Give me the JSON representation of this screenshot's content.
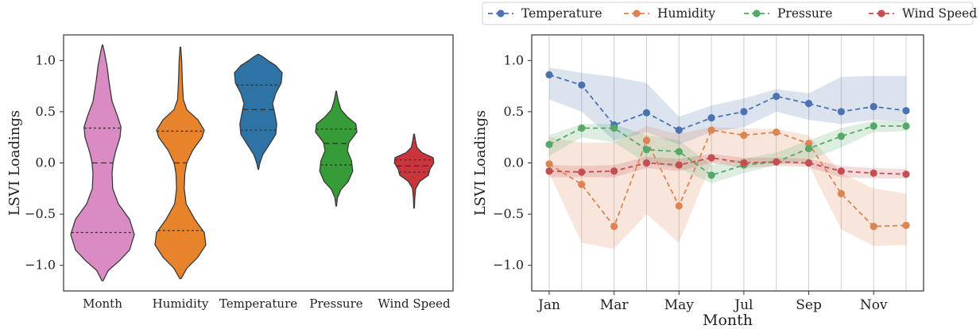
{
  "chart_data": [
    {
      "type": "violin",
      "ylabel": "LSVI Loadings",
      "xlabel": "",
      "ylim": [
        -1.25,
        1.25
      ],
      "yticks": [
        1.0,
        0.5,
        0.0,
        -0.5,
        -1.0
      ],
      "ytick_labels": [
        "1.0",
        "0.5",
        "0.0",
        "−0.5",
        "−1.0"
      ],
      "grid": false,
      "categories": [
        "Month",
        "Humidity",
        "Temperature",
        "Pressure",
        "Wind Speed"
      ],
      "violins": [
        {
          "name": "Month",
          "color": "#da8bc3",
          "min": -1.15,
          "max": 1.15,
          "q1": -0.68,
          "median": 0.0,
          "q3": 0.34,
          "density": [
            [
              -1.15,
              0.02
            ],
            [
              -1.05,
              0.18
            ],
            [
              -0.95,
              0.55
            ],
            [
              -0.85,
              0.85
            ],
            [
              -0.7,
              1.0
            ],
            [
              -0.55,
              0.85
            ],
            [
              -0.4,
              0.5
            ],
            [
              -0.25,
              0.32
            ],
            [
              -0.1,
              0.3
            ],
            [
              0.0,
              0.33
            ],
            [
              0.1,
              0.4
            ],
            [
              0.25,
              0.55
            ],
            [
              0.35,
              0.58
            ],
            [
              0.45,
              0.48
            ],
            [
              0.6,
              0.3
            ],
            [
              0.8,
              0.2
            ],
            [
              0.95,
              0.14
            ],
            [
              1.08,
              0.06
            ],
            [
              1.15,
              0.01
            ]
          ]
        },
        {
          "name": "Humidity",
          "color": "#e6832b",
          "min": -1.13,
          "max": 1.13,
          "q1": -0.66,
          "median": 0.0,
          "q3": 0.31,
          "density": [
            [
              -1.13,
              0.02
            ],
            [
              -1.03,
              0.2
            ],
            [
              -0.92,
              0.55
            ],
            [
              -0.8,
              0.8
            ],
            [
              -0.68,
              0.75
            ],
            [
              -0.55,
              0.45
            ],
            [
              -0.4,
              0.18
            ],
            [
              -0.25,
              0.12
            ],
            [
              -0.1,
              0.14
            ],
            [
              0.0,
              0.2
            ],
            [
              0.12,
              0.38
            ],
            [
              0.25,
              0.68
            ],
            [
              0.32,
              0.75
            ],
            [
              0.42,
              0.55
            ],
            [
              0.52,
              0.2
            ],
            [
              0.62,
              0.09
            ],
            [
              0.8,
              0.06
            ],
            [
              1.0,
              0.04
            ],
            [
              1.13,
              0.01
            ]
          ]
        },
        {
          "name": "Temperature",
          "color": "#2d73a6",
          "min": -0.06,
          "max": 1.06,
          "q1": 0.32,
          "median": 0.52,
          "q3": 0.76,
          "density": [
            [
              -0.06,
              0.01
            ],
            [
              0.0,
              0.05
            ],
            [
              0.08,
              0.14
            ],
            [
              0.18,
              0.35
            ],
            [
              0.28,
              0.55
            ],
            [
              0.38,
              0.58
            ],
            [
              0.48,
              0.52
            ],
            [
              0.58,
              0.45
            ],
            [
              0.68,
              0.55
            ],
            [
              0.78,
              0.72
            ],
            [
              0.88,
              0.75
            ],
            [
              0.95,
              0.55
            ],
            [
              1.0,
              0.3
            ],
            [
              1.04,
              0.12
            ],
            [
              1.06,
              0.01
            ]
          ]
        },
        {
          "name": "Pressure",
          "color": "#369c37",
          "min": -0.42,
          "max": 0.7,
          "q1": -0.02,
          "median": 0.19,
          "q3": 0.33,
          "density": [
            [
              -0.42,
              0.01
            ],
            [
              -0.34,
              0.04
            ],
            [
              -0.26,
              0.15
            ],
            [
              -0.18,
              0.38
            ],
            [
              -0.08,
              0.52
            ],
            [
              0.02,
              0.48
            ],
            [
              0.12,
              0.35
            ],
            [
              0.2,
              0.4
            ],
            [
              0.3,
              0.65
            ],
            [
              0.38,
              0.62
            ],
            [
              0.45,
              0.35
            ],
            [
              0.52,
              0.15
            ],
            [
              0.6,
              0.07
            ],
            [
              0.66,
              0.03
            ],
            [
              0.7,
              0.01
            ]
          ]
        },
        {
          "name": "Wind Speed",
          "color": "#c9353b",
          "min": -0.44,
          "max": 0.28,
          "q1": -0.09,
          "median": -0.03,
          "q3": 0.03,
          "density": [
            [
              -0.44,
              0.01
            ],
            [
              -0.35,
              0.02
            ],
            [
              -0.25,
              0.05
            ],
            [
              -0.18,
              0.18
            ],
            [
              -0.12,
              0.45
            ],
            [
              -0.06,
              0.5
            ],
            [
              0.0,
              0.62
            ],
            [
              0.05,
              0.6
            ],
            [
              0.1,
              0.25
            ],
            [
              0.15,
              0.09
            ],
            [
              0.22,
              0.04
            ],
            [
              0.28,
              0.01
            ]
          ]
        }
      ]
    },
    {
      "type": "line",
      "xlabel": "Month",
      "ylabel": "LSVI Loadings",
      "ylim": [
        -1.25,
        1.25
      ],
      "yticks": [
        1.0,
        0.5,
        0.0,
        -0.5,
        -1.0
      ],
      "ytick_labels": [
        "1.0",
        "0.5",
        "0.0",
        "−0.5",
        "−1.0"
      ],
      "x": [
        1,
        2,
        3,
        4,
        5,
        6,
        7,
        8,
        9,
        10,
        11,
        12
      ],
      "xticks": [
        1,
        3,
        5,
        7,
        9,
        11
      ],
      "xtick_labels": [
        "Jan",
        "Mar",
        "May",
        "Jul",
        "Sep",
        "Nov"
      ],
      "grid": "vertical",
      "legend_position": "top-center-outside",
      "series": [
        {
          "name": "Temperature",
          "color": "#4c72b0",
          "values": [
            0.86,
            0.76,
            0.37,
            0.49,
            0.32,
            0.44,
            0.5,
            0.65,
            0.58,
            0.5,
            0.55,
            0.51
          ],
          "lower": [
            0.62,
            0.5,
            0.22,
            0.3,
            0.18,
            0.3,
            0.35,
            0.5,
            0.42,
            0.38,
            0.42,
            0.4
          ],
          "upper": [
            0.93,
            0.88,
            0.84,
            0.78,
            0.45,
            0.56,
            0.63,
            0.72,
            0.68,
            0.84,
            0.85,
            0.85
          ]
        },
        {
          "name": "Humidity",
          "color": "#dd8452",
          "values": [
            -0.01,
            -0.21,
            -0.62,
            0.22,
            -0.42,
            0.32,
            0.27,
            0.3,
            0.19,
            -0.3,
            -0.62,
            -0.61
          ],
          "lower": [
            -0.1,
            -0.78,
            -0.84,
            -0.5,
            -0.78,
            0.0,
            0.0,
            0.0,
            -0.02,
            -0.65,
            -0.81,
            -0.8
          ],
          "upper": [
            0.25,
            0.2,
            0.2,
            0.36,
            0.28,
            0.35,
            0.34,
            0.33,
            0.27,
            -0.1,
            -0.25,
            -0.3
          ]
        },
        {
          "name": "Pressure",
          "color": "#55a868",
          "values": [
            0.18,
            0.34,
            0.34,
            0.13,
            0.11,
            -0.12,
            -0.02,
            0.01,
            0.14,
            0.26,
            0.36,
            0.36
          ],
          "lower": [
            0.07,
            0.25,
            0.2,
            0.0,
            -0.05,
            -0.2,
            -0.1,
            -0.02,
            0.03,
            0.15,
            0.3,
            0.31
          ],
          "upper": [
            0.27,
            0.38,
            0.38,
            0.27,
            0.22,
            -0.02,
            0.04,
            0.1,
            0.22,
            0.34,
            0.41,
            0.41
          ]
        },
        {
          "name": "Wind Speed",
          "color": "#c44e52",
          "values": [
            -0.08,
            -0.09,
            -0.08,
            0.0,
            -0.02,
            0.05,
            0.0,
            0.01,
            0.0,
            -0.08,
            -0.1,
            -0.11
          ],
          "lower": [
            -0.14,
            -0.14,
            -0.14,
            -0.05,
            -0.08,
            0.0,
            -0.05,
            -0.03,
            -0.04,
            -0.14,
            -0.15,
            -0.15
          ],
          "upper": [
            -0.02,
            -0.03,
            -0.02,
            0.06,
            0.04,
            0.09,
            0.05,
            0.05,
            0.04,
            -0.03,
            -0.05,
            -0.06
          ]
        }
      ]
    }
  ]
}
